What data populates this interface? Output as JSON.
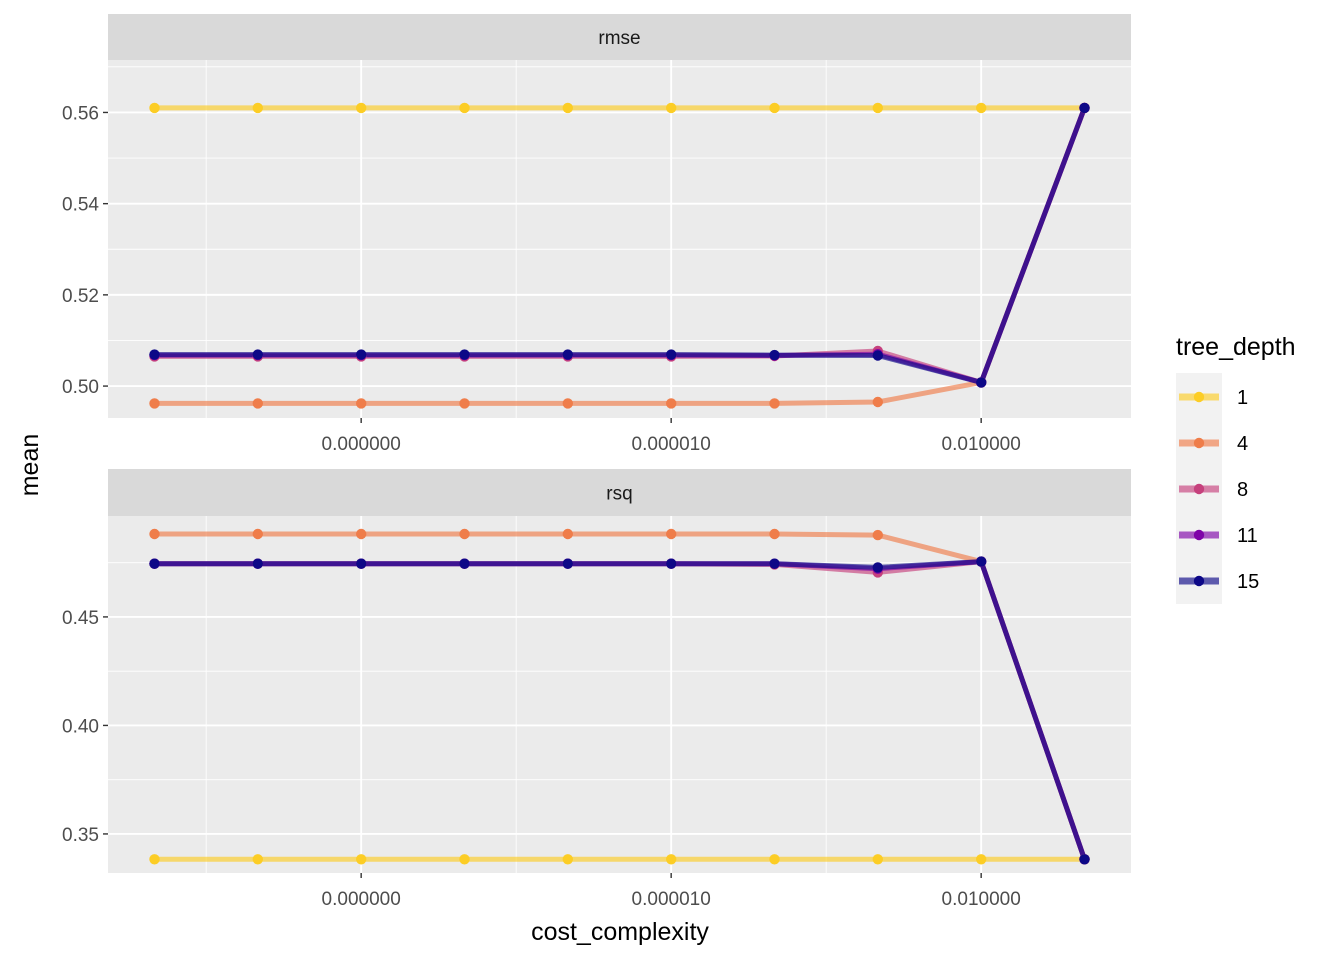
{
  "chart_data": {
    "type": "line",
    "x_label": "cost_complexity",
    "y_label": "mean",
    "x_scale": "log10",
    "x": [
      1e-10,
      1e-09,
      1e-08,
      1e-07,
      1e-06,
      1e-05,
      0.0001,
      0.001,
      0.01,
      0.1
    ],
    "x_ticks": [
      1e-08,
      1e-05,
      0.01
    ],
    "x_tick_labels": [
      "0.000000",
      "0.000010",
      "0.010000"
    ],
    "grid": true,
    "legend": {
      "title": "tree_depth",
      "placement": "right",
      "entries": [
        "1",
        "4",
        "8",
        "11",
        "15"
      ]
    },
    "colors": {
      "1": "#fccd25",
      "4": "#ef7d4a",
      "8": "#c6417d",
      "11": "#7e03a8",
      "15": "#0d0887"
    },
    "panels": [
      {
        "strip": "rmse",
        "ylim": [
          0.493,
          0.5715
        ],
        "y_ticks": [
          0.5,
          0.52,
          0.54,
          0.56
        ],
        "y_tick_labels": [
          "0.50",
          "0.52",
          "0.54",
          "0.56"
        ],
        "series": [
          {
            "name": "1",
            "values": [
              0.561,
              0.561,
              0.561,
              0.561,
              0.561,
              0.561,
              0.561,
              0.561,
              0.561,
              0.561
            ]
          },
          {
            "name": "4",
            "values": [
              0.4962,
              0.4962,
              0.4962,
              0.4962,
              0.4962,
              0.4962,
              0.4962,
              0.4965,
              0.5008,
              0.561
            ]
          },
          {
            "name": "8",
            "values": [
              0.5065,
              0.5065,
              0.5065,
              0.5065,
              0.5065,
              0.5065,
              0.5066,
              0.5077,
              0.5008,
              0.561
            ]
          },
          {
            "name": "11",
            "values": [
              0.5068,
              0.5068,
              0.5068,
              0.5068,
              0.5068,
              0.5068,
              0.5067,
              0.507,
              0.5008,
              0.561
            ]
          },
          {
            "name": "15",
            "values": [
              0.5069,
              0.5069,
              0.5069,
              0.5069,
              0.5069,
              0.5069,
              0.5068,
              0.5067,
              0.5008,
              0.561
            ]
          }
        ]
      },
      {
        "strip": "rsq",
        "ylim": [
          0.332,
          0.4965
        ],
        "y_ticks": [
          0.35,
          0.4,
          0.45
        ],
        "y_tick_labels": [
          "0.35",
          "0.40",
          "0.45"
        ],
        "series": [
          {
            "name": "1",
            "values": [
              0.3383,
              0.3383,
              0.3383,
              0.3383,
              0.3383,
              0.3383,
              0.3383,
              0.3383,
              0.3383,
              0.3383
            ]
          },
          {
            "name": "4",
            "values": [
              0.4882,
              0.4882,
              0.4882,
              0.4882,
              0.4882,
              0.4882,
              0.4882,
              0.4877,
              0.4755,
              0.3383
            ]
          },
          {
            "name": "8",
            "values": [
              0.4745,
              0.4745,
              0.4745,
              0.4745,
              0.4745,
              0.4745,
              0.4742,
              0.4705,
              0.4755,
              0.3383
            ]
          },
          {
            "name": "11",
            "values": [
              0.4745,
              0.4745,
              0.4745,
              0.4745,
              0.4745,
              0.4745,
              0.4745,
              0.4722,
              0.4755,
              0.3383
            ]
          },
          {
            "name": "15",
            "values": [
              0.4745,
              0.4745,
              0.4745,
              0.4745,
              0.4745,
              0.4745,
              0.4745,
              0.4728,
              0.4755,
              0.3383
            ]
          }
        ]
      }
    ]
  }
}
